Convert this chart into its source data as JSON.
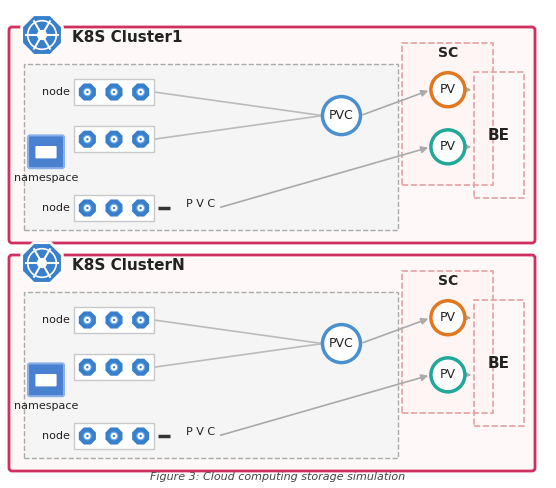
{
  "title": "Figure 3: Cloud computing storage simulation",
  "cluster1_label": "K8S Cluster1",
  "clusterN_label": "K8S ClusterN",
  "namespace_label": "namespace",
  "node_label": "node",
  "pvc_label": "PVC",
  "pv_label": "PV",
  "sc_label": "SC",
  "be_label": "BE",
  "pvc_text": "P V C",
  "bg_color": "#ffffff",
  "cluster_border_color": "#d03060",
  "dashed_border_color": "#aaaaaa",
  "sc_border_color": "#e8a0a0",
  "be_border_color": "#e8a0a0",
  "k8s_icon_color": "#3a7fca",
  "pod_color": "#3a7fca",
  "namespace_icon_color": "#4a80d0",
  "pvc_circle_color": "#4a90d0",
  "pv_orange_color": "#e07820",
  "pv_teal_color": "#20a898",
  "arrow_color": "#aaaaaa",
  "text_color": "#222222",
  "node_box_color": "#f0f0f0",
  "cluster_bg": "#fef8f8",
  "ns_bg": "#f5f5f5"
}
